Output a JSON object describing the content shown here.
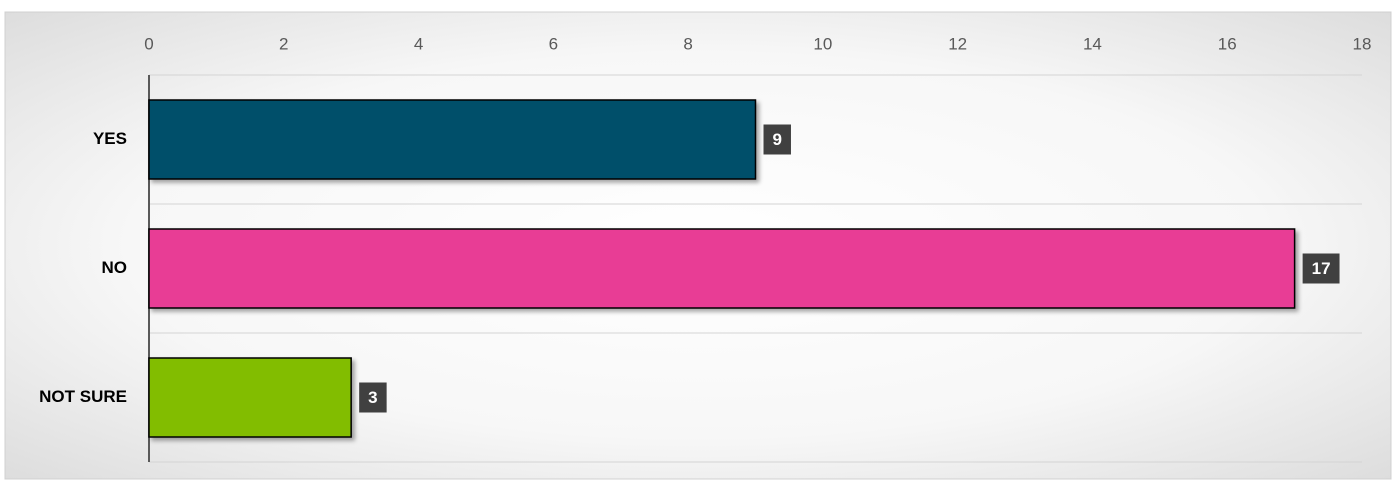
{
  "chart_data": {
    "type": "hbar",
    "categories": [
      "YES",
      "NO",
      "NOT SURE"
    ],
    "values": [
      9,
      17,
      3
    ],
    "colors": [
      "#03506b",
      "#e83e95",
      "#82bd00"
    ],
    "xlim": [
      0,
      18
    ],
    "xticks": [
      0,
      2,
      4,
      6,
      8,
      10,
      12,
      14,
      16,
      18
    ]
  }
}
